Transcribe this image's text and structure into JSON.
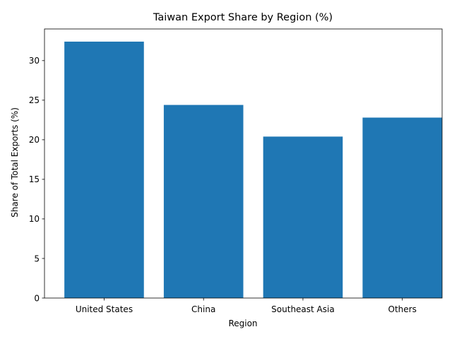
{
  "chart_data": {
    "type": "bar",
    "title": "Taiwan Export Share by Region (%)",
    "xlabel": "Region",
    "ylabel": "Share of Total Exports (%)",
    "categories": [
      "United States",
      "China",
      "Southeast Asia",
      "Others"
    ],
    "values": [
      32.4,
      24.4,
      20.4,
      22.8
    ],
    "ylim": [
      0,
      34
    ],
    "yticks": [
      0,
      5,
      10,
      15,
      20,
      25,
      30
    ],
    "bar_color": "#1f77b4",
    "grid": false,
    "legend": "none"
  }
}
